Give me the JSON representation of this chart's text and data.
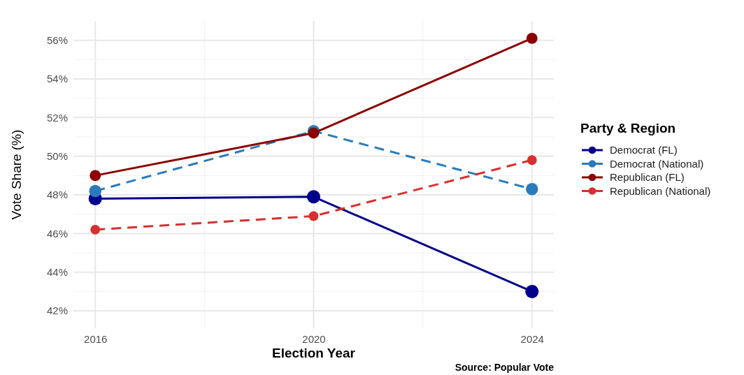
{
  "chart_data": {
    "type": "line",
    "xlabel": "Election Year",
    "ylabel": "Vote Share (%)",
    "legend_title": "Party & Region",
    "annotations": [
      "Source: Popular Vote"
    ],
    "x": [
      2016,
      2020,
      2024
    ],
    "series": [
      {
        "name": "Democrat (FL)",
        "color": "#00008b",
        "values": [
          47.8,
          47.9,
          43.0
        ],
        "line_style": "solid"
      },
      {
        "name": "Democrat (National)",
        "color": "#2b7bba",
        "values": [
          48.2,
          51.3,
          48.3
        ],
        "line_style": "dashed"
      },
      {
        "name": "Republican (FL)",
        "color": "#8b0000",
        "values": [
          49.0,
          51.2,
          56.1
        ],
        "line_style": "solid"
      },
      {
        "name": "Republican (National)",
        "color": "#d7302f",
        "values": [
          46.2,
          46.9,
          49.8
        ],
        "line_style": "dashed"
      }
    ],
    "xlim": [
      2015.6,
      2024.4
    ],
    "xticks": [
      2016,
      2020,
      2024
    ],
    "ylim": [
      41.1,
      57.0
    ],
    "yticks": [
      {
        "value": 42,
        "label": "42%"
      },
      {
        "value": 44,
        "label": "44%"
      },
      {
        "value": 46,
        "label": "46%"
      },
      {
        "value": 48,
        "label": "48%"
      },
      {
        "value": 50,
        "label": "50%"
      },
      {
        "value": 52,
        "label": "52%"
      },
      {
        "value": 54,
        "label": "54%"
      },
      {
        "value": 56,
        "label": "56%"
      }
    ],
    "grid": true,
    "legend": "right",
    "marker": "circle"
  }
}
